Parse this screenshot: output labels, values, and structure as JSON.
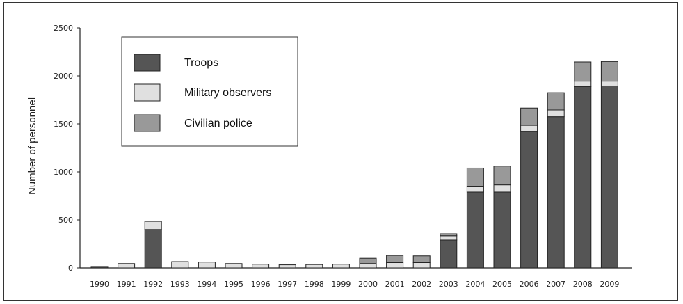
{
  "chart_data": {
    "type": "bar",
    "stacked": true,
    "title": "",
    "xlabel": "",
    "ylabel": "Number of personnel",
    "ylim": [
      0,
      2500
    ],
    "yticks": [
      "0",
      "500",
      "1000",
      "1500",
      "2000",
      "2500"
    ],
    "categories": [
      "1990",
      "1991",
      "1992",
      "1993",
      "1994",
      "1995",
      "1996",
      "1997",
      "1998",
      "1999",
      "2000",
      "2001",
      "2002",
      "2003",
      "2004",
      "2005",
      "2006",
      "2007",
      "2008",
      "2009"
    ],
    "series": [
      {
        "name": "Troops",
        "color": "#555555",
        "values": [
          0,
          0,
          400,
          0,
          0,
          0,
          0,
          0,
          0,
          0,
          0,
          0,
          0,
          290,
          790,
          790,
          1420,
          1575,
          1890,
          1895
        ]
      },
      {
        "name": "Military observers",
        "color": "#e0e0e0",
        "values": [
          8,
          45,
          85,
          65,
          60,
          45,
          38,
          32,
          35,
          38,
          45,
          55,
          55,
          45,
          55,
          75,
          65,
          70,
          55,
          50
        ]
      },
      {
        "name": "Civilian police",
        "color": "#999999",
        "values": [
          0,
          0,
          0,
          0,
          0,
          0,
          0,
          0,
          0,
          0,
          55,
          75,
          70,
          20,
          195,
          195,
          180,
          180,
          200,
          205
        ]
      }
    ],
    "legend": "top-left",
    "grid": false
  }
}
